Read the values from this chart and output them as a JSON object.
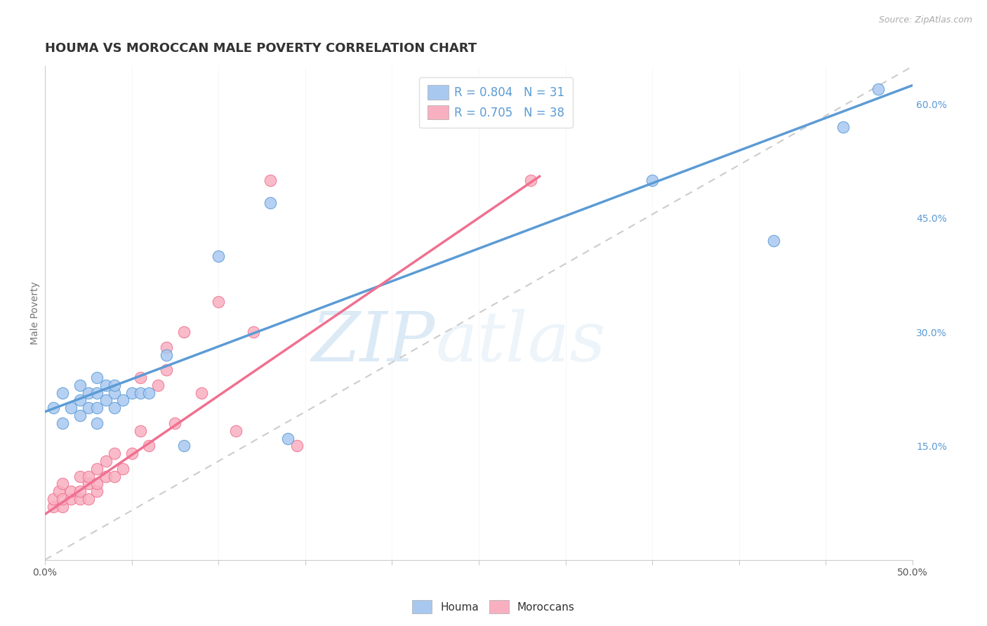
{
  "title": "HOUMA VS MOROCCAN MALE POVERTY CORRELATION CHART",
  "source": "Source: ZipAtlas.com",
  "ylabel": "Male Poverty",
  "xlim": [
    0.0,
    0.5
  ],
  "ylim": [
    0.0,
    0.65
  ],
  "xticks": [
    0.0,
    0.05,
    0.1,
    0.15,
    0.2,
    0.25,
    0.3,
    0.35,
    0.4,
    0.45,
    0.5
  ],
  "ytick_labels_right": [
    "15.0%",
    "30.0%",
    "45.0%",
    "60.0%"
  ],
  "ytick_vals_right": [
    0.15,
    0.3,
    0.45,
    0.6
  ],
  "houma_R": 0.804,
  "houma_N": 31,
  "moroccan_R": 0.705,
  "moroccan_N": 38,
  "houma_color": "#a8c8f0",
  "moroccan_color": "#f8b0c0",
  "houma_line_color": "#5b9bd5",
  "moroccan_line_color": "#f07090",
  "ref_line_color": "#cccccc",
  "background_color": "#ffffff",
  "grid_color": "#e8e8e8",
  "houma_scatter_x": [
    0.005,
    0.01,
    0.01,
    0.015,
    0.02,
    0.02,
    0.02,
    0.025,
    0.025,
    0.03,
    0.03,
    0.03,
    0.03,
    0.035,
    0.035,
    0.04,
    0.04,
    0.04,
    0.045,
    0.05,
    0.055,
    0.06,
    0.07,
    0.08,
    0.1,
    0.13,
    0.14,
    0.35,
    0.42,
    0.46,
    0.48
  ],
  "houma_scatter_y": [
    0.2,
    0.18,
    0.22,
    0.2,
    0.19,
    0.21,
    0.23,
    0.2,
    0.22,
    0.18,
    0.2,
    0.22,
    0.24,
    0.21,
    0.23,
    0.2,
    0.22,
    0.23,
    0.21,
    0.22,
    0.22,
    0.22,
    0.27,
    0.15,
    0.4,
    0.47,
    0.16,
    0.5,
    0.42,
    0.57,
    0.62
  ],
  "moroccan_scatter_x": [
    0.005,
    0.005,
    0.008,
    0.01,
    0.01,
    0.01,
    0.015,
    0.015,
    0.02,
    0.02,
    0.02,
    0.025,
    0.025,
    0.025,
    0.03,
    0.03,
    0.03,
    0.035,
    0.035,
    0.04,
    0.04,
    0.045,
    0.05,
    0.055,
    0.055,
    0.06,
    0.065,
    0.07,
    0.07,
    0.075,
    0.08,
    0.09,
    0.1,
    0.11,
    0.12,
    0.13,
    0.145,
    0.28
  ],
  "moroccan_scatter_y": [
    0.07,
    0.08,
    0.09,
    0.07,
    0.08,
    0.1,
    0.08,
    0.09,
    0.08,
    0.09,
    0.11,
    0.08,
    0.1,
    0.11,
    0.09,
    0.1,
    0.12,
    0.11,
    0.13,
    0.11,
    0.14,
    0.12,
    0.14,
    0.17,
    0.24,
    0.15,
    0.23,
    0.25,
    0.28,
    0.18,
    0.3,
    0.22,
    0.34,
    0.17,
    0.3,
    0.5,
    0.15,
    0.5
  ],
  "houma_line_x": [
    0.0,
    0.5
  ],
  "houma_line_y": [
    0.195,
    0.625
  ],
  "moroccan_line_x": [
    0.0,
    0.285
  ],
  "moroccan_line_y": [
    0.06,
    0.505
  ],
  "ref_line_x": [
    0.0,
    0.5
  ],
  "ref_line_y": [
    0.0,
    0.65
  ],
  "watermark_zip": "ZIP",
  "watermark_atlas": "atlas",
  "title_fontsize": 13,
  "axis_label_fontsize": 10,
  "tick_fontsize": 10,
  "legend_fontsize": 12
}
